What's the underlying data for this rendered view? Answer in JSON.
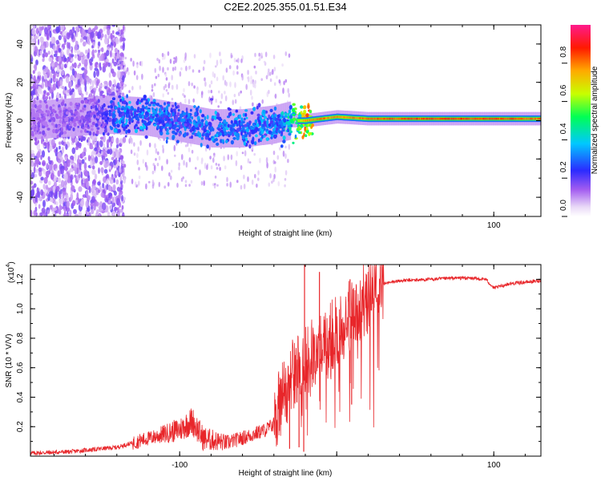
{
  "figure_title": "C2E2.2025.355.01.51.E34",
  "colors": {
    "snr_line": "#e8262a",
    "axis": "#000000",
    "background": "#ffffff",
    "spectro_bg": "#ffffff"
  },
  "chart_data": [
    {
      "type": "heatmap",
      "name": "spectrogram",
      "title": "",
      "xlabel": "Height of straight line (km)",
      "ylabel": "Frequency (Hz)",
      "xlim": [
        -195,
        130
      ],
      "ylim": [
        -50,
        50
      ],
      "xticks": [
        -100,
        0,
        100
      ],
      "yticks": [
        -40,
        -20,
        0,
        20,
        40
      ],
      "xtick_labels": [
        "-100",
        "",
        "100"
      ],
      "ytick_labels": [
        "-40",
        "-20",
        "0",
        "20",
        "40"
      ],
      "colorbar": {
        "label": "Normalized spectral amplitude",
        "range": [
          0,
          1
        ],
        "ticks": [
          0.0,
          0.2,
          0.4,
          0.6,
          0.8
        ],
        "tick_labels": [
          "0.0",
          "0.2",
          "0.4",
          "0.6",
          "0.8"
        ]
      },
      "ridge_trace": {
        "x_km": [
          -195,
          -150,
          -140,
          -120,
          -100,
          -80,
          -60,
          -40,
          -30,
          -20,
          -10,
          0,
          20,
          60,
          100,
          130
        ],
        "center_hz": [
          0,
          3,
          3,
          2,
          -1,
          -4,
          -4,
          -2,
          0,
          0,
          1,
          2,
          1,
          1,
          1,
          1
        ],
        "amplitude": [
          0.15,
          0.2,
          0.35,
          0.35,
          0.3,
          0.35,
          0.35,
          0.35,
          0.45,
          0.8,
          0.85,
          0.8,
          0.85,
          0.9,
          0.9,
          0.85
        ]
      }
    },
    {
      "type": "line",
      "name": "snr",
      "title": "",
      "xlabel": "Height of straight line (km)",
      "ylabel": "SNR (10 * V/V)",
      "y_multiplier": "(x10",
      "y_multiplier_exp": "4",
      "y_multiplier_close": ")",
      "xlim": [
        -195,
        130
      ],
      "ylim": [
        0,
        1.3
      ],
      "xticks": [
        -100,
        0,
        100
      ],
      "yticks": [
        0.2,
        0.4,
        0.6,
        0.8,
        1.0,
        1.2
      ],
      "xtick_labels": [
        "-100",
        "",
        "100"
      ],
      "ytick_labels": [
        "0.2",
        "0.4",
        "0.6",
        "0.8",
        "1.0",
        "1.2"
      ],
      "series": [
        {
          "name": "SNR",
          "x": [
            -195,
            -170,
            -150,
            -140,
            -120,
            -100,
            -92,
            -85,
            -70,
            -55,
            -45,
            -40,
            -35,
            -30,
            -25,
            -20,
            -15,
            -10,
            -5,
            0,
            5,
            10,
            15,
            20,
            25,
            30,
            40,
            60,
            80,
            95,
            100,
            110,
            120,
            130
          ],
          "y": [
            0.02,
            0.03,
            0.05,
            0.06,
            0.12,
            0.18,
            0.24,
            0.12,
            0.09,
            0.14,
            0.18,
            0.22,
            0.4,
            0.55,
            0.58,
            0.62,
            0.72,
            0.8,
            0.78,
            0.85,
            0.92,
            0.95,
            1.02,
            1.1,
            1.15,
            1.17,
            1.19,
            1.2,
            1.21,
            1.2,
            1.14,
            1.17,
            1.18,
            1.19
          ]
        }
      ],
      "spikes": [
        {
          "x": -20.5,
          "y": 1.3
        },
        {
          "x": -11,
          "y": 1.25
        },
        {
          "x": 8.5,
          "y": 1.2
        }
      ],
      "dips": [
        {
          "x": -30,
          "y": 0.05
        },
        {
          "x": -24,
          "y": 0.06
        },
        {
          "x": -21,
          "y": 0.03
        },
        {
          "x": 9.5,
          "y": 0.35
        }
      ]
    }
  ]
}
